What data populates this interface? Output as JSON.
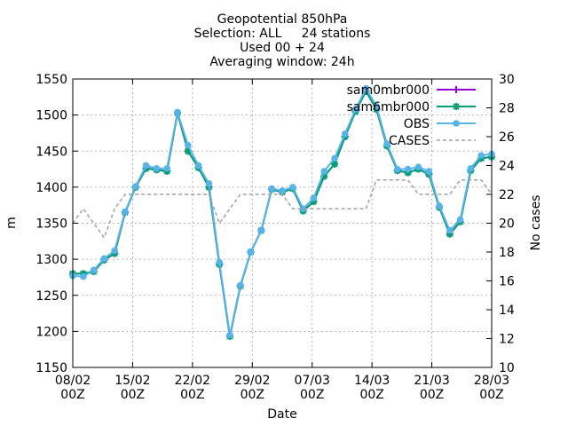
{
  "chart_data": {
    "type": "line",
    "title_lines": [
      "Geopotential 850hPa",
      "Selection: ALL     24 stations",
      "Used 00 + 24",
      "Averaging window: 24h"
    ],
    "xlabel": "Date",
    "ylabel": "m",
    "y2label": "No cases",
    "xlim": [
      0,
      40
    ],
    "ylim": [
      1150,
      1550
    ],
    "y2lim": [
      10,
      30
    ],
    "grid": true,
    "legend_position": "top-right",
    "x_tick_labels": [
      "08/02\n00Z",
      "15/02\n00Z",
      "22/02\n00Z",
      "29/02\n00Z",
      "07/03\n00Z",
      "14/03\n00Z",
      "21/03\n00Z",
      "28/03\n00Z"
    ],
    "y_tick_labels": [
      "1150",
      "1200",
      "1250",
      "1300",
      "1350",
      "1400",
      "1450",
      "1500",
      "1550"
    ],
    "y2_tick_labels": [
      "10",
      "12",
      "14",
      "16",
      "18",
      "20",
      "22",
      "24",
      "26",
      "28",
      "30"
    ],
    "x": [
      0,
      1,
      2,
      3,
      4,
      5,
      6,
      7,
      8,
      9,
      10,
      11,
      12,
      13,
      14,
      15,
      16,
      17,
      18,
      19,
      20,
      21,
      22,
      23,
      24,
      25,
      26,
      27,
      28,
      29,
      30,
      31,
      32,
      33,
      34,
      35,
      36,
      37,
      38,
      39,
      40
    ],
    "series": [
      {
        "name": "sam0mbr000",
        "color": "#9400d3",
        "marker": "plus",
        "axis": "y1",
        "values": [
          1280,
          1280,
          1283,
          1299,
          1308,
          1365,
          1400,
          1426,
          1424,
          1422,
          1503,
          1450,
          1427,
          1400,
          1293,
          1193,
          1263,
          1310,
          1340,
          1397,
          1393,
          1398,
          1367,
          1380,
          1415,
          1432,
          1470,
          1505,
          1533,
          1508,
          1457,
          1423,
          1420,
          1425,
          1418,
          1372,
          1335,
          1352,
          1423,
          1440,
          1442
        ]
      },
      {
        "name": "sam6mbr000",
        "color": "#009e73",
        "marker": "cross",
        "axis": "y1",
        "values": [
          1280,
          1280,
          1283,
          1299,
          1308,
          1365,
          1400,
          1426,
          1424,
          1422,
          1503,
          1450,
          1427,
          1400,
          1293,
          1193,
          1263,
          1310,
          1340,
          1397,
          1393,
          1398,
          1367,
          1380,
          1415,
          1432,
          1470,
          1505,
          1533,
          1508,
          1457,
          1423,
          1420,
          1425,
          1418,
          1372,
          1335,
          1352,
          1423,
          1440,
          1442
        ]
      },
      {
        "name": "OBS",
        "color": "#56b4e9",
        "marker": "circle",
        "axis": "y1",
        "values": [
          1277,
          1276,
          1285,
          1301,
          1312,
          1366,
          1401,
          1430,
          1426,
          1426,
          1504,
          1458,
          1430,
          1405,
          1296,
          1195,
          1264,
          1310,
          1340,
          1398,
          1395,
          1400,
          1370,
          1385,
          1422,
          1440,
          1474,
          1508,
          1537,
          1512,
          1460,
          1425,
          1425,
          1428,
          1422,
          1374,
          1340,
          1355,
          1426,
          1444,
          1446
        ]
      },
      {
        "name": "CASES",
        "color": "#a0a0a0",
        "dash": true,
        "axis": "y2",
        "values": [
          20,
          21,
          20,
          19,
          21,
          22,
          22,
          22,
          22,
          22,
          22,
          22,
          22,
          22,
          20,
          21,
          22,
          22,
          22,
          22,
          22,
          21,
          21,
          21,
          21,
          21,
          21,
          21,
          21,
          23,
          23,
          23,
          23,
          22,
          22,
          22,
          22,
          23,
          23,
          23,
          22
        ]
      }
    ]
  }
}
